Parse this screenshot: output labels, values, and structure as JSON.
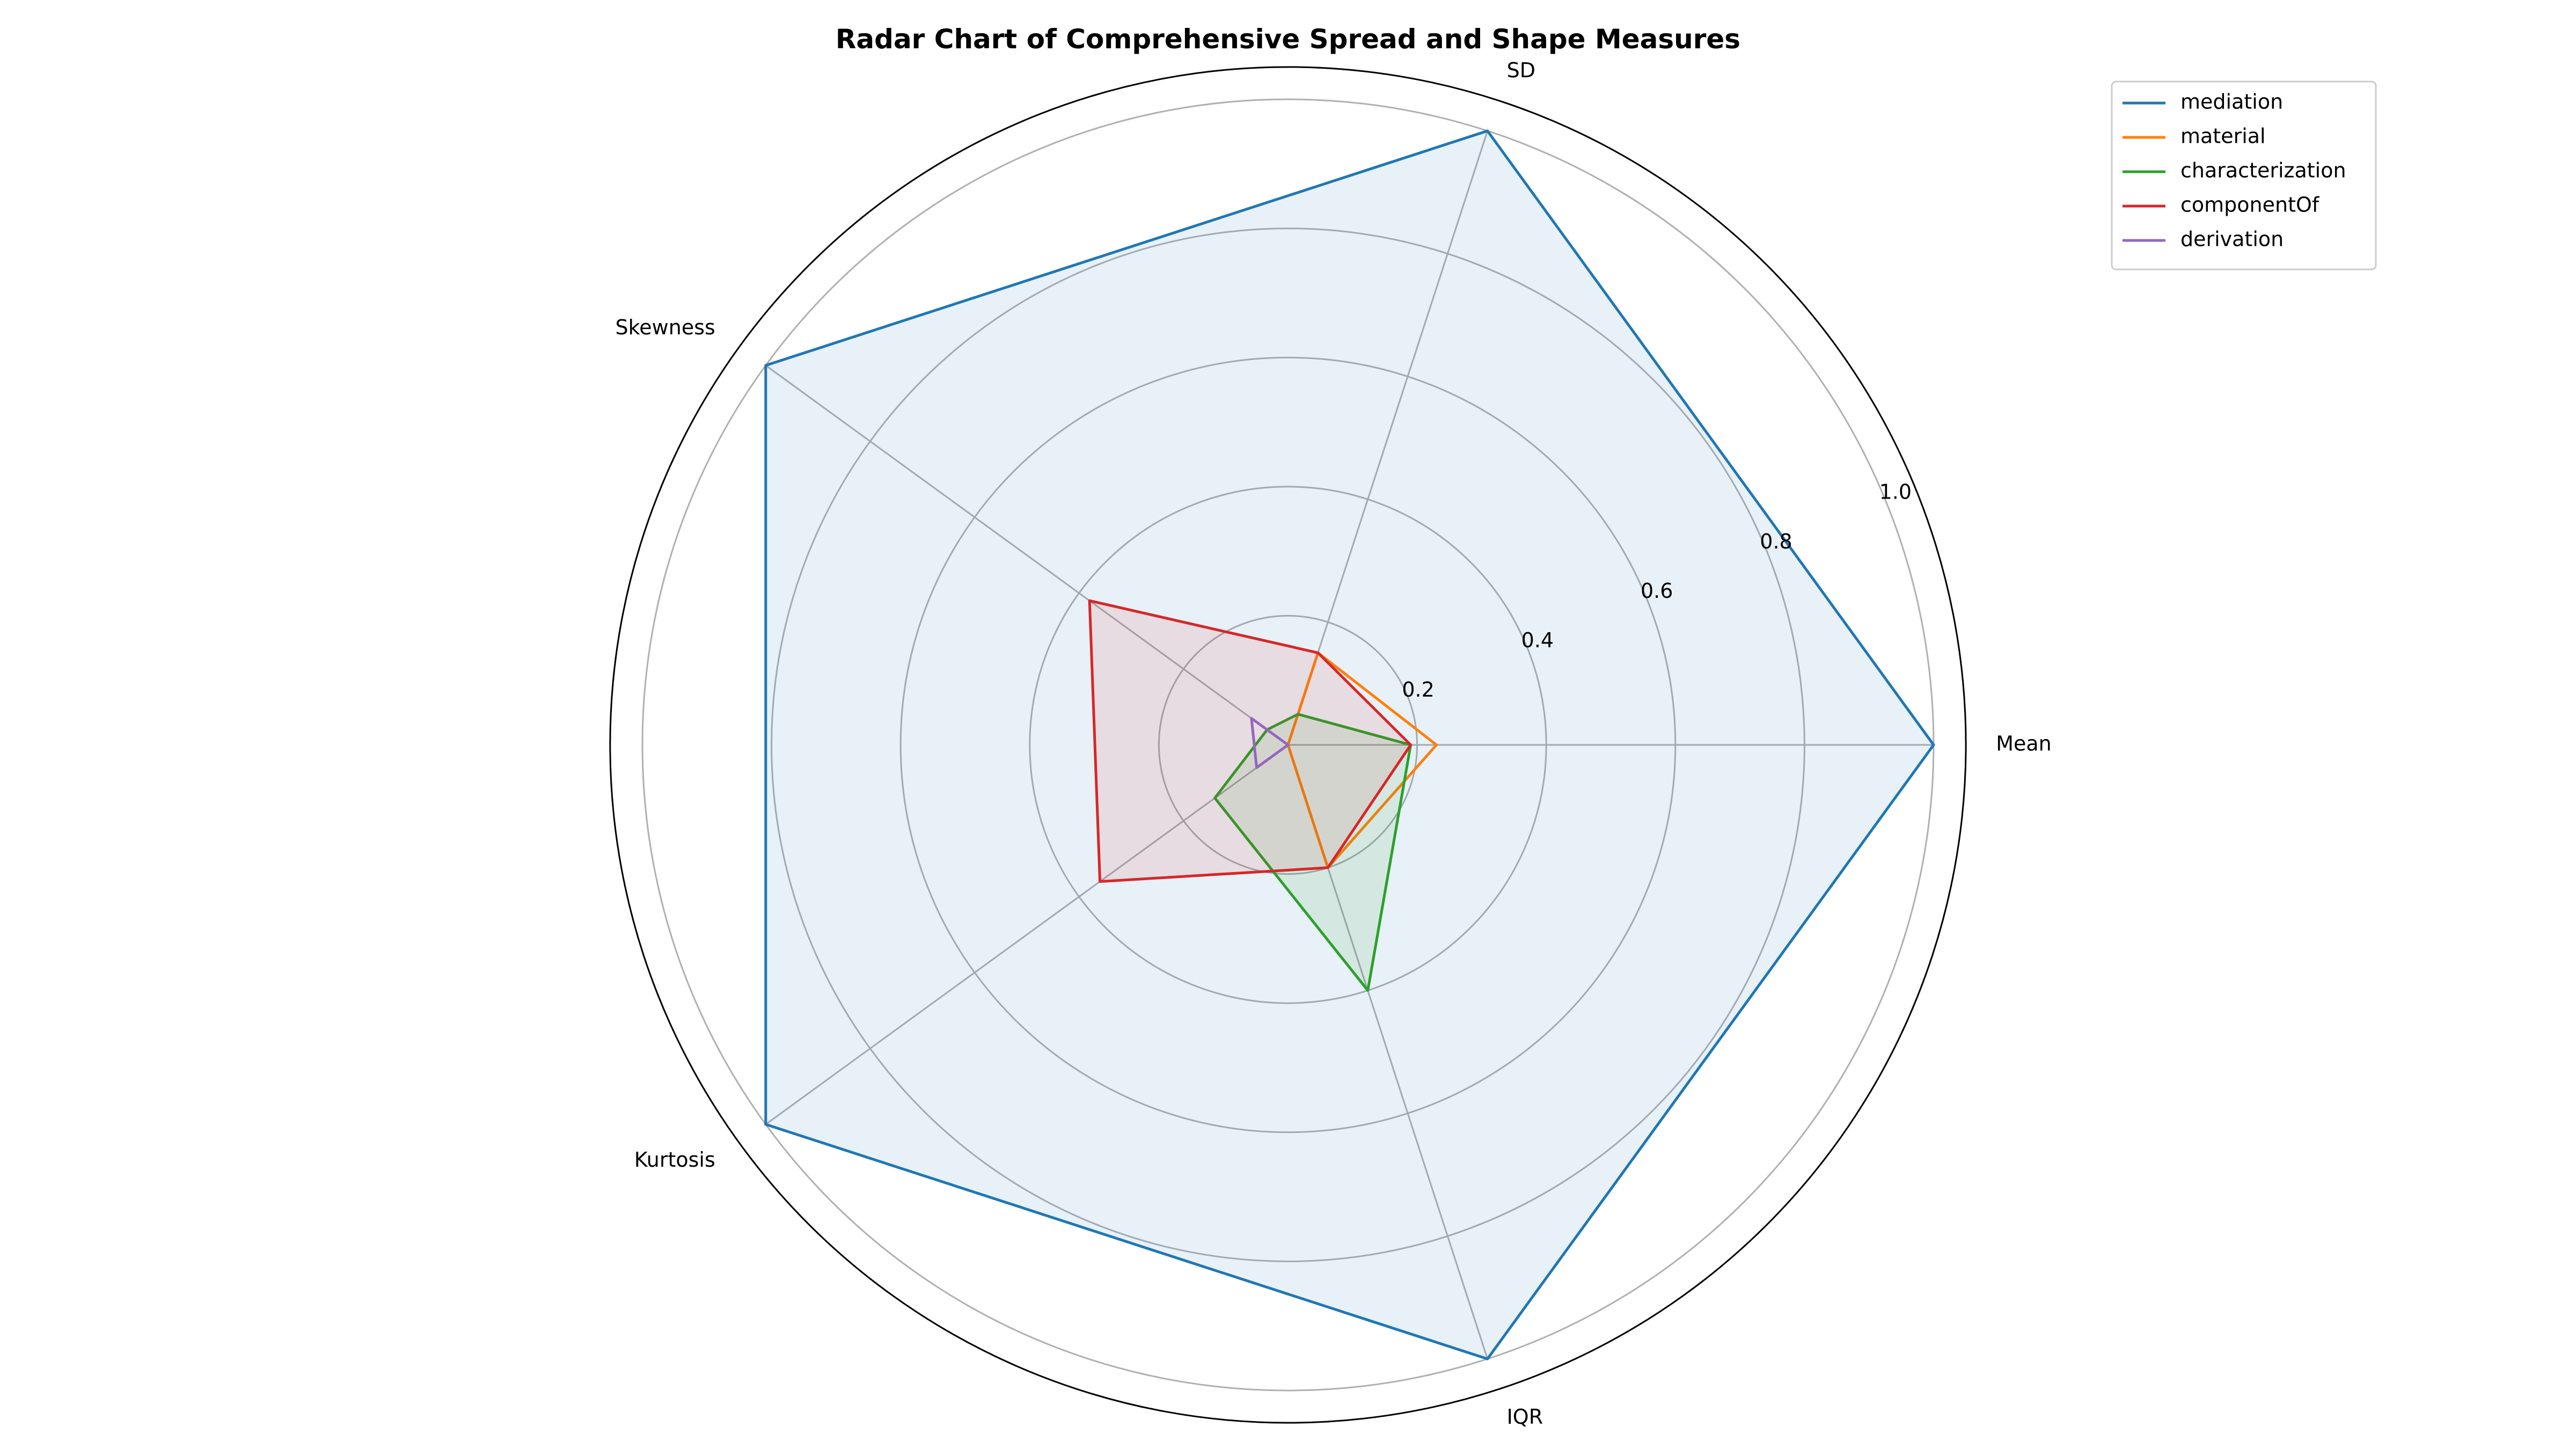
{
  "chart_data": {
    "type": "radar",
    "title": "Radar Chart of Comprehensive Spread and Shape Measures",
    "axes": [
      "Mean",
      "SD",
      "Skewness",
      "Kurtosis",
      "IQR"
    ],
    "rlim": [
      0,
      1.0
    ],
    "rticks": [
      0.2,
      0.4,
      0.6,
      0.8,
      1.0
    ],
    "rtick_labels": [
      "0.2",
      "0.4",
      "0.6",
      "0.8",
      "1.0"
    ],
    "grid": true,
    "legend_position": "top-right",
    "series": [
      {
        "name": "mediation",
        "color": "#1f77b4",
        "fill": true,
        "values": [
          1.0,
          1.0,
          1.0,
          1.0,
          1.0
        ]
      },
      {
        "name": "material",
        "color": "#ff7f0e",
        "fill": false,
        "values": [
          0.23,
          0.15,
          0.0,
          0.0,
          0.2
        ]
      },
      {
        "name": "characterization",
        "color": "#2ca02c",
        "fill": true,
        "values": [
          0.19,
          0.05,
          0.04,
          0.14,
          0.4
        ]
      },
      {
        "name": "componentOf",
        "color": "#d62728",
        "fill": true,
        "values": [
          0.19,
          0.15,
          0.38,
          0.36,
          0.2
        ]
      },
      {
        "name": "derivation",
        "color": "#9467bd",
        "fill": false,
        "values": [
          0.0,
          0.0,
          0.07,
          0.06,
          0.0
        ]
      }
    ]
  }
}
